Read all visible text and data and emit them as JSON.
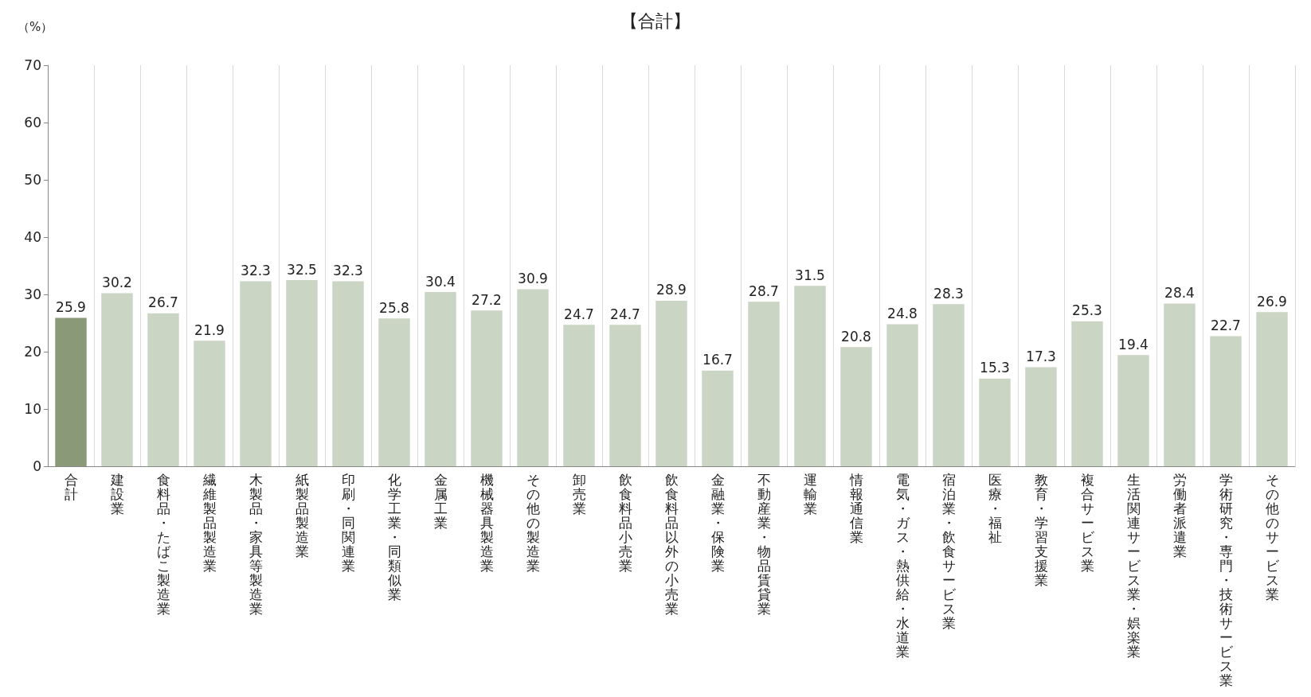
{
  "chart_data": {
    "type": "bar",
    "title": "【合計】",
    "ylabel": "（%）",
    "categories": [
      "合計",
      "建設業",
      "食料品・たばこ製造業",
      "繊維製品製造業",
      "木製品・家具等製造業",
      "紙製品製造業",
      "印刷・同関連業",
      "化学工業・同類似業",
      "金属工業",
      "機械器具製造業",
      "その他の製造業",
      "卸売業",
      "飲食料品小売業",
      "飲食料品以外の小売業",
      "金融業・保険業",
      "不動産業・物品賃貸業",
      "運輸業",
      "情報通信業",
      "電気・ガス・熱供給・水道業",
      "宿泊業・飲食サービス業",
      "医療・福祉",
      "教育・学習支援業",
      "複合サービス業",
      "生活関連サービス業・娯楽業",
      "労働者派遣業",
      "学術研究・専門・技術サービス業",
      "その他のサービス業"
    ],
    "values": [
      25.9,
      30.2,
      26.7,
      21.9,
      32.3,
      32.5,
      32.3,
      25.8,
      30.4,
      27.2,
      30.9,
      24.7,
      24.7,
      28.9,
      16.7,
      28.7,
      31.5,
      20.8,
      24.8,
      28.3,
      15.3,
      17.3,
      25.3,
      19.4,
      28.4,
      22.7,
      26.9
    ],
    "colors": [
      "#8a9a78",
      "#cad5c3",
      "#cad5c3",
      "#cad5c3",
      "#cad5c3",
      "#cad5c3",
      "#cad5c3",
      "#cad5c3",
      "#cad5c3",
      "#cad5c3",
      "#cad5c3",
      "#cad5c3",
      "#cad5c3",
      "#cad5c3",
      "#cad5c3",
      "#cad5c3",
      "#cad5c3",
      "#cad5c3",
      "#cad5c3",
      "#cad5c3",
      "#cad5c3",
      "#cad5c3",
      "#cad5c3",
      "#cad5c3",
      "#cad5c3",
      "#cad5c3",
      "#cad5c3"
    ],
    "ylim": [
      0,
      70
    ],
    "yticks": [
      0,
      10,
      20,
      30,
      40,
      50,
      60,
      70
    ],
    "grid": "x",
    "data_labels": true
  }
}
